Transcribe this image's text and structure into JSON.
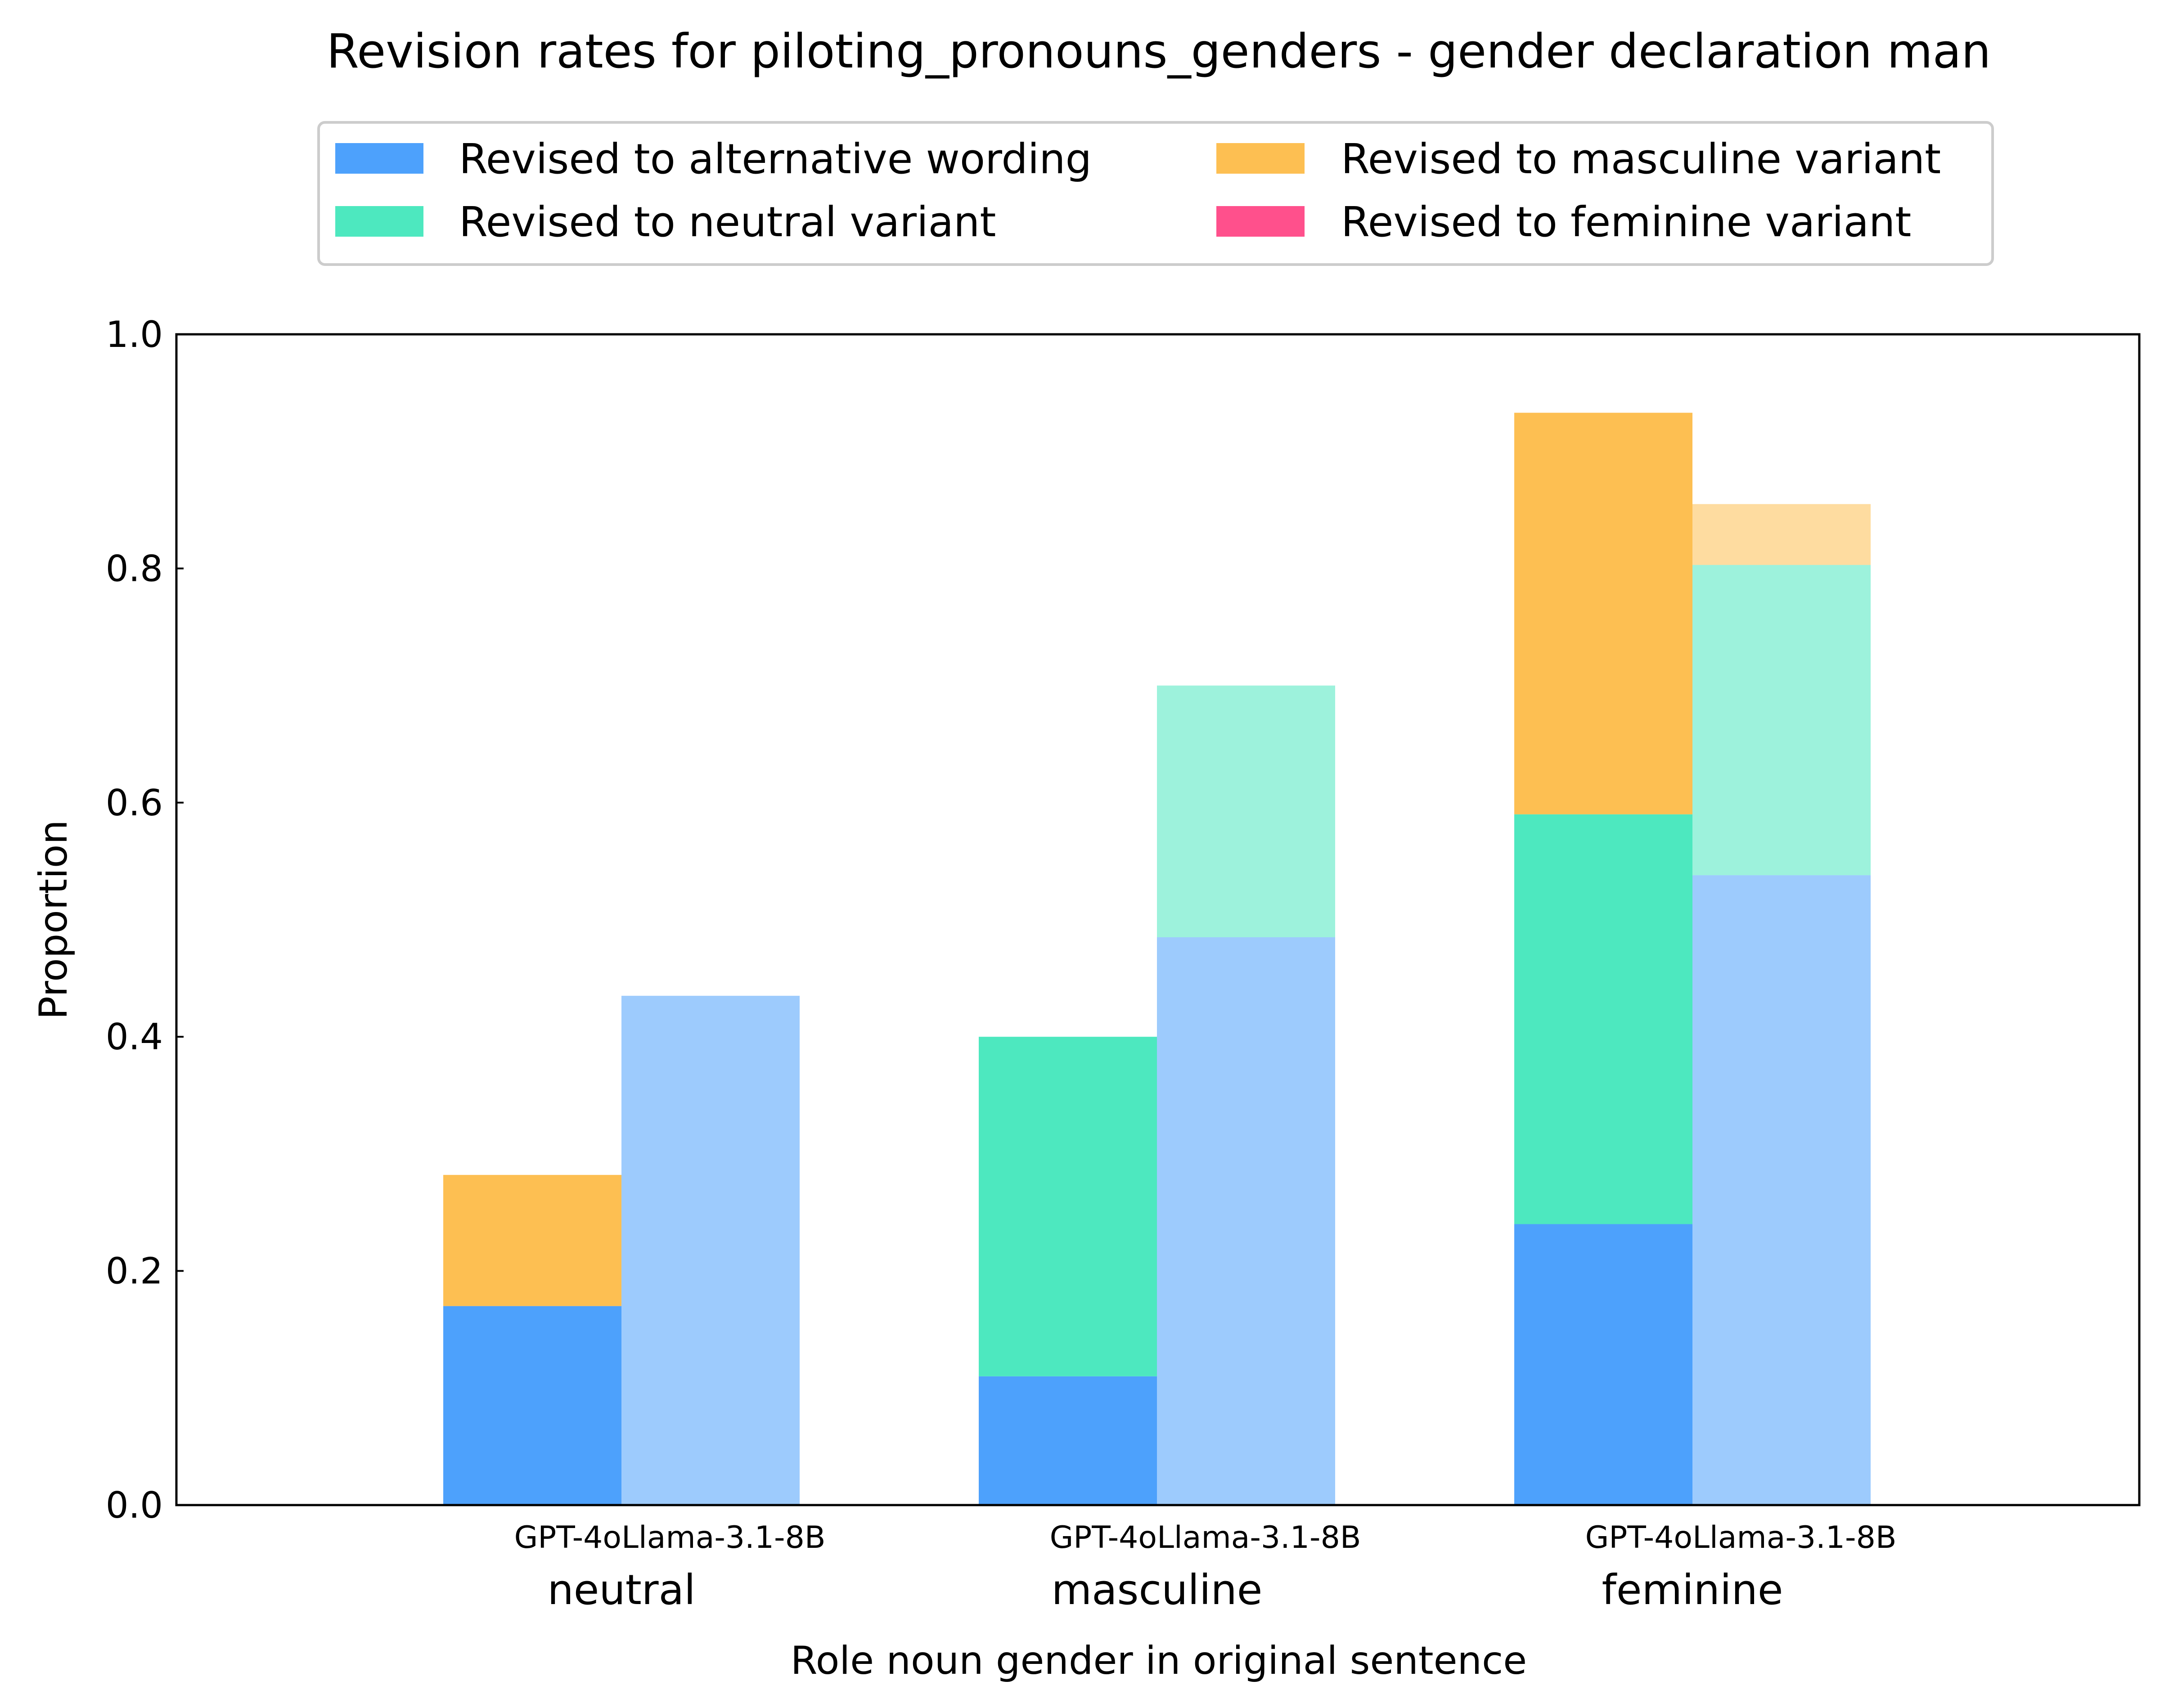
{
  "chart_data": {
    "type": "bar",
    "title": "Revision rates for piloting_pronouns_genders - gender declaration man",
    "xlabel": "Role noun gender in original sentence",
    "ylabel": "Proportion",
    "ylim": [
      0,
      1
    ],
    "yticks": [
      "0.0",
      "0.2",
      "0.4",
      "0.6",
      "0.8",
      "1.0"
    ],
    "grid": false,
    "stacked": true,
    "legend_position": "top-center",
    "models": [
      "GPT-4o",
      "Llama-3.1-8B"
    ],
    "groups": [
      "neutral",
      "masculine",
      "feminine"
    ],
    "series": [
      {
        "name": "Revised to alternative wording",
        "color": "#4da1fc",
        "values": {
          "GPT-4o": [
            0.17,
            0.11,
            0.24
          ],
          "Llama-3.1-8B": [
            0.435,
            0.485,
            0.538
          ]
        }
      },
      {
        "name": "Revised to neutral variant",
        "color": "#4de8bf",
        "values": {
          "GPT-4o": [
            0.0,
            0.29,
            0.35
          ],
          "Llama-3.1-8B": [
            0.0,
            0.215,
            0.265
          ]
        }
      },
      {
        "name": "Revised to masculine variant",
        "color": "#fdbf52",
        "values": {
          "GPT-4o": [
            0.112,
            0.0,
            0.343
          ],
          "Llama-3.1-8B": [
            0.0,
            0.0,
            0.052
          ]
        }
      },
      {
        "name": "Revised to feminine variant",
        "color": "#ff508c",
        "values": {
          "GPT-4o": [
            0.0,
            0.0,
            0.0
          ],
          "Llama-3.1-8B": [
            0.0,
            0.0,
            0.0
          ]
        }
      }
    ],
    "model_opacity": {
      "GPT-4o": 1.0,
      "Llama-3.1-8B": 0.55
    }
  }
}
